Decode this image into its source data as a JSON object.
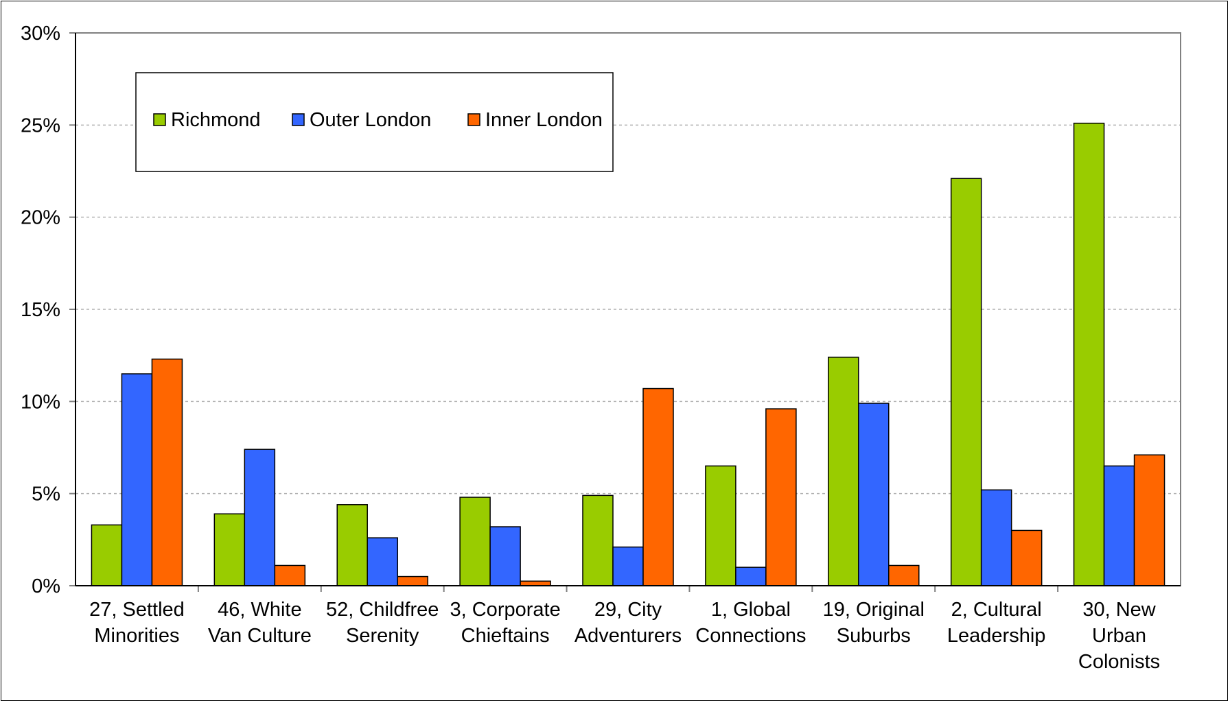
{
  "chart_data": {
    "type": "bar",
    "title": "",
    "xlabel": "",
    "ylabel": "",
    "ylim": [
      0,
      30
    ],
    "yticks": [
      0,
      5,
      10,
      15,
      20,
      25,
      30
    ],
    "ytick_labels": [
      "0%",
      "5%",
      "10%",
      "15%",
      "20%",
      "25%",
      "30%"
    ],
    "grid": "horizontal dashed",
    "legend_position": "top-left",
    "categories": [
      [
        "27, Settled",
        "Minorities"
      ],
      [
        "46, White",
        "Van Culture"
      ],
      [
        "52, Childfree",
        "Serenity"
      ],
      [
        "3, Corporate",
        "Chieftains"
      ],
      [
        "29, City",
        "Adventurers"
      ],
      [
        "1, Global",
        "Connections"
      ],
      [
        "19, Original",
        "Suburbs"
      ],
      [
        "2, Cultural",
        "Leadership"
      ],
      [
        "30, New",
        "Urban",
        "Colonists"
      ]
    ],
    "series": [
      {
        "name": "Richmond",
        "color": "#99cc00",
        "values": [
          3.3,
          3.9,
          4.4,
          4.8,
          4.9,
          6.5,
          12.4,
          22.1,
          25.1
        ]
      },
      {
        "name": "Outer London",
        "color": "#3366ff",
        "values": [
          11.5,
          7.4,
          2.6,
          3.2,
          2.1,
          1.0,
          9.9,
          5.2,
          6.5
        ]
      },
      {
        "name": "Inner London",
        "color": "#ff6600",
        "values": [
          12.3,
          1.1,
          0.5,
          0.25,
          10.7,
          9.6,
          1.1,
          3.0,
          7.1
        ]
      }
    ]
  }
}
